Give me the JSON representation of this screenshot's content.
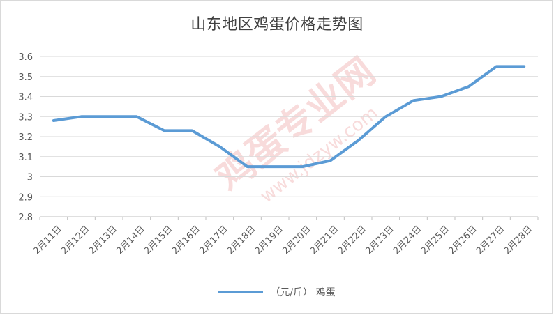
{
  "chart_data": {
    "type": "line",
    "title": "山东地区鸡蛋价格走势图",
    "xlabel": "",
    "ylabel": "",
    "ylim": [
      2.8,
      3.6
    ],
    "yticks": [
      "2.8",
      "2.9",
      "3",
      "3.1",
      "3.2",
      "3.3",
      "3.4",
      "3.5",
      "3.6"
    ],
    "ytick_values": [
      2.8,
      2.9,
      3.0,
      3.1,
      3.2,
      3.3,
      3.4,
      3.5,
      3.6
    ],
    "categories": [
      "2月11日",
      "2月12日",
      "2月13日",
      "2月14日",
      "2月15日",
      "2月16日",
      "2月17日",
      "2月18日",
      "2月19日",
      "2月20日",
      "2月21日",
      "2月22日",
      "2月23日",
      "2月24日",
      "2月25日",
      "2月26日",
      "2月27日",
      "2月28日"
    ],
    "series": [
      {
        "name": "（元/斤） 鸡蛋",
        "color": "#5b9bd5",
        "values": [
          3.28,
          3.3,
          3.3,
          3.3,
          3.23,
          3.23,
          3.15,
          3.05,
          3.05,
          3.05,
          3.08,
          3.18,
          3.3,
          3.38,
          3.4,
          3.45,
          3.55,
          3.55
        ]
      }
    ],
    "grid": true,
    "legend_position": "bottom"
  },
  "watermark": {
    "main_text": "鸡蛋专业网",
    "url_text": "www.jdzyw.com",
    "color": "#e8a0a0"
  }
}
